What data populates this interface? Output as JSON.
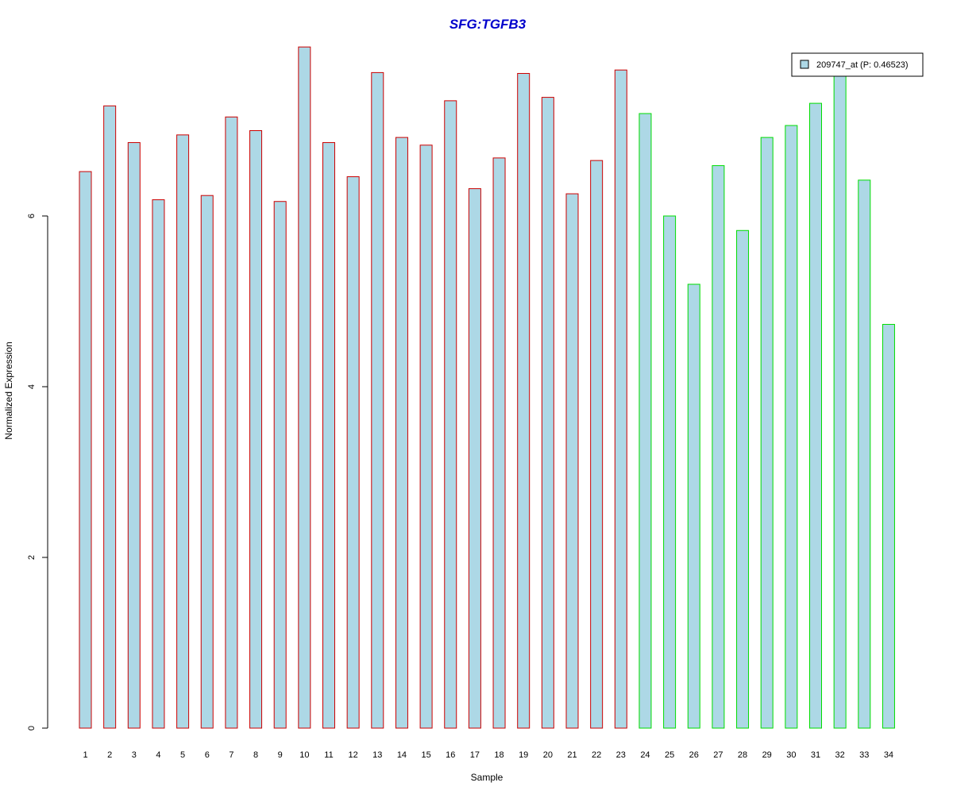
{
  "chart_data": {
    "type": "bar",
    "title": "SFG:TGFB3",
    "xlabel": "Sample",
    "ylabel": "Normalized Expression",
    "categories": [
      "1",
      "2",
      "3",
      "4",
      "5",
      "6",
      "7",
      "8",
      "9",
      "10",
      "11",
      "12",
      "13",
      "14",
      "15",
      "16",
      "17",
      "18",
      "19",
      "20",
      "21",
      "22",
      "23",
      "24",
      "25",
      "26",
      "27",
      "28",
      "29",
      "30",
      "31",
      "32",
      "33",
      "34"
    ],
    "series": [
      {
        "name": "209747_at (P: 0.46523)",
        "values": [
          6.52,
          7.29,
          6.86,
          6.19,
          6.95,
          6.24,
          7.16,
          7.0,
          6.17,
          7.98,
          6.86,
          6.46,
          7.68,
          6.92,
          6.83,
          7.35,
          6.32,
          6.68,
          7.67,
          7.39,
          6.26,
          6.65,
          7.71,
          7.2,
          6.0,
          5.2,
          6.59,
          5.83,
          6.92,
          7.06,
          7.32,
          7.64,
          6.42,
          4.73
        ]
      }
    ],
    "group_of_sample": [
      1,
      1,
      1,
      1,
      1,
      1,
      1,
      1,
      1,
      1,
      1,
      1,
      1,
      1,
      1,
      1,
      1,
      1,
      1,
      1,
      1,
      1,
      1,
      2,
      2,
      2,
      2,
      2,
      2,
      2,
      2,
      2,
      2,
      2
    ],
    "yticks": [
      0,
      2,
      4,
      6
    ],
    "ylim": [
      0,
      8
    ],
    "grid": false,
    "legend_position": "top-right",
    "colors": {
      "bar_fill": "#add8e6",
      "group1_border": "#cc0000",
      "group2_border": "#00dd00",
      "title": "#0000cc",
      "axis": "#000000"
    }
  }
}
